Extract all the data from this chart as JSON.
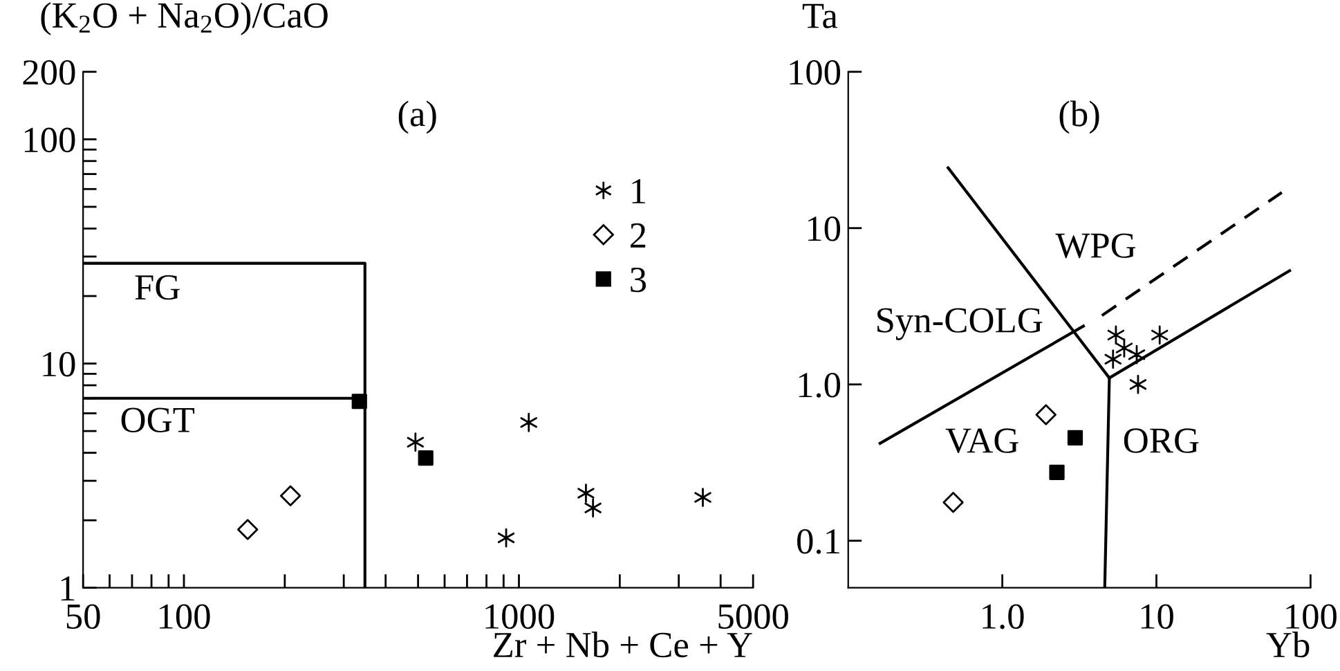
{
  "chart_data": [
    {
      "type": "scatter",
      "ylabel": "(K$_{2}$O + Na$_{2}$O)/CaO",
      "xlabel": "Zr + Nb + Ce + Y",
      "log": "xy",
      "xlim": [
        50,
        5000
      ],
      "ylim": [
        1,
        200
      ],
      "xticks": [
        50,
        {
          "value": 60,
          "label": null
        },
        {
          "value": 70,
          "label": null
        },
        {
          "value": 80,
          "label": null
        },
        {
          "value": 90,
          "label": null
        },
        100,
        {
          "value": 200,
          "label": null
        },
        {
          "value": 300,
          "label": null
        },
        {
          "value": 400,
          "label": null
        },
        {
          "value": 500,
          "label": null
        },
        {
          "value": 600,
          "label": null
        },
        {
          "value": 700,
          "label": null
        },
        {
          "value": 800,
          "label": null
        },
        {
          "value": 900,
          "label": null
        },
        1000,
        {
          "value": 2000,
          "label": null
        },
        {
          "value": 3000,
          "label": null
        },
        {
          "value": 4000,
          "label": null
        },
        5000
      ],
      "yticks": [
        1,
        {
          "value": 2,
          "label": null
        },
        {
          "value": 3,
          "label": null
        },
        {
          "value": 4,
          "label": null
        },
        {
          "value": 5,
          "label": null
        },
        {
          "value": 6,
          "label": null
        },
        {
          "value": 7,
          "label": null
        },
        {
          "value": 8,
          "label": null
        },
        {
          "value": 9,
          "label": null
        },
        10,
        {
          "value": 20,
          "label": null
        },
        {
          "value": 30,
          "label": null
        },
        {
          "value": 40,
          "label": null
        },
        {
          "value": 50,
          "label": null
        },
        {
          "value": 60,
          "label": null
        },
        {
          "value": 70,
          "label": null
        },
        {
          "value": 80,
          "label": null
        },
        {
          "value": 90,
          "label": null
        },
        100,
        200
      ],
      "grid": false,
      "legend": "top right",
      "series": [
        {
          "name": "1",
          "color": "#000000",
          "marker": "cross",
          "x": [
            491,
            1070,
            916,
            1585,
            1664,
            3540
          ],
          "values": [
            4.46,
            5.46,
            1.67,
            2.64,
            2.27,
            2.53
          ]
        },
        {
          "name": "2",
          "color": "#000000",
          "marker": "diamond",
          "x": [
            155,
            208
          ],
          "values": [
            1.82,
            2.57
          ]
        },
        {
          "name": "3",
          "color": "#000000",
          "marker": "square",
          "x": [
            334,
            527
          ],
          "values": [
            6.78,
            3.79
          ]
        },
        {
          "type": "line",
          "color": "#000000",
          "line_style": "solid",
          "x": [
            50,
            347,
            347
          ],
          "values": [
            28,
            28,
            1
          ]
        },
        {
          "type": "line",
          "color": "#000000",
          "line_style": "solid",
          "x": [
            50,
            347
          ],
          "values": [
            7.0,
            7.0
          ]
        }
      ],
      "annotations": [
        "(a)",
        "FG",
        "OGT"
      ]
    },
    {
      "type": "scatter",
      "ylabel": "Ta",
      "xlabel": "Yb",
      "log": "xy",
      "xlim": [
        0.1,
        100
      ],
      "ylim": [
        0.05,
        100
      ],
      "xticks": [
        {
          "value": 1,
          "label": "1.0"
        },
        10,
        100
      ],
      "yticks": [
        0.1,
        {
          "value": 1,
          "label": "1.0"
        },
        10,
        100
      ],
      "grid": false,
      "series": [
        {
          "color": "#000000",
          "marker": "cross",
          "x": [
            5.46,
            10.5,
            6.18,
            7.45,
            5.23,
            7.6
          ],
          "values": [
            2.07,
            2.07,
            1.71,
            1.55,
            1.45,
            1.0
          ]
        },
        {
          "color": "#000000",
          "marker": "diamond",
          "x": [
            0.48,
            1.92
          ],
          "values": [
            0.176,
            0.64
          ]
        },
        {
          "color": "#000000",
          "marker": "square",
          "x": [
            2.97,
            2.26
          ],
          "values": [
            0.456,
            0.274
          ]
        },
        {
          "type": "line",
          "color": "#000000",
          "line_style": "solid",
          "x": [
            0.445,
            4.95,
            4.62
          ],
          "values": [
            24.3,
            1.1,
            0.05
          ]
        },
        {
          "type": "line",
          "color": "#000000",
          "line_style": "solid",
          "x": [
            0.161,
            3.36
          ],
          "values": [
            0.42,
            2.36
          ]
        },
        {
          "type": "line",
          "color": "#000000",
          "line_style": "solid",
          "x": [
            4.95,
            73.2
          ],
          "values": [
            1.1,
            5.34
          ]
        },
        {
          "type": "line",
          "color": "#000000",
          "line_style": "dashed",
          "x": [
            4.43,
            65.1
          ],
          "values": [
            2.76,
            16.9
          ]
        }
      ],
      "annotations": [
        "(b)",
        "WPG",
        "Syn-COLG",
        "VAG",
        "ORG"
      ]
    }
  ]
}
